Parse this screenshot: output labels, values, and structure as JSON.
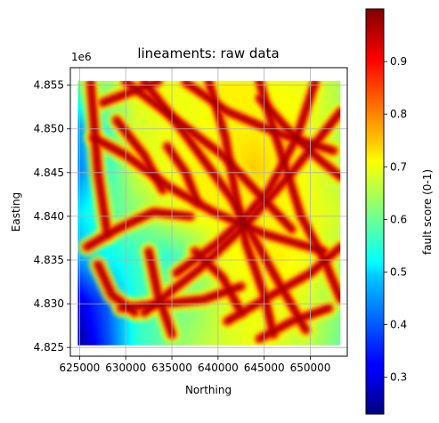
{
  "chart_data": {
    "type": "heatmap",
    "title": "lineaments: raw data",
    "xlabel": "Northing",
    "ylabel": "Easting",
    "y_offset_label": "1e6",
    "xlim": [
      624000,
      654000
    ],
    "ylim": [
      4824000,
      4857000
    ],
    "data_extent": {
      "x": [
        624800,
        653300
      ],
      "y": [
        4825200,
        4855500
      ]
    },
    "x_ticks": [
      625000,
      630000,
      635000,
      640000,
      645000,
      650000
    ],
    "x_tick_labels": [
      "625000",
      "630000",
      "635000",
      "640000",
      "645000",
      "650000"
    ],
    "y_ticks": [
      4825000,
      4830000,
      4835000,
      4840000,
      4845000,
      4850000,
      4855000
    ],
    "y_tick_labels": [
      "4.825",
      "4.830",
      "4.835",
      "4.840",
      "4.845",
      "4.850",
      "4.855"
    ],
    "grid": true,
    "colorbar": {
      "label": "fault score (0-1)",
      "range": [
        0.23,
        1.0
      ],
      "colormap": "jet",
      "ticks": [
        0.3,
        0.4,
        0.5,
        0.6,
        0.7,
        0.8,
        0.9
      ],
      "tick_labels": [
        "0.3",
        "0.4",
        "0.5",
        "0.6",
        "0.7",
        "0.8",
        "0.9"
      ]
    },
    "base_field": [
      [
        0.62,
        0.64,
        0.7,
        0.7,
        0.7,
        0.72,
        0.72,
        0.7,
        0.7,
        0.65
      ],
      [
        0.45,
        0.55,
        0.68,
        0.7,
        0.7,
        0.72,
        0.72,
        0.72,
        0.7,
        0.65
      ],
      [
        0.42,
        0.55,
        0.68,
        0.7,
        0.72,
        0.72,
        0.75,
        0.72,
        0.7,
        0.65
      ],
      [
        0.5,
        0.58,
        0.62,
        0.68,
        0.72,
        0.72,
        0.72,
        0.72,
        0.7,
        0.68
      ],
      [
        0.45,
        0.52,
        0.56,
        0.55,
        0.6,
        0.7,
        0.72,
        0.72,
        0.7,
        0.65
      ],
      [
        0.3,
        0.4,
        0.55,
        0.6,
        0.62,
        0.68,
        0.7,
        0.7,
        0.68,
        0.62
      ],
      [
        0.25,
        0.38,
        0.55,
        0.6,
        0.65,
        0.68,
        0.7,
        0.68,
        0.66,
        0.6
      ]
    ],
    "lineaments": [
      [
        [
          630000,
          4855400
        ],
        [
          640500,
          4847000
        ],
        [
          648000,
          4838500
        ]
      ],
      [
        [
          627500,
          4853000
        ],
        [
          633500,
          4855400
        ]
      ],
      [
        [
          632000,
          4855400
        ],
        [
          636000,
          4850000
        ],
        [
          641500,
          4842000
        ],
        [
          646000,
          4833500
        ],
        [
          649500,
          4827000
        ]
      ],
      [
        [
          636500,
          4855300
        ],
        [
          641000,
          4852000
        ],
        [
          646500,
          4849500
        ],
        [
          652500,
          4847500
        ]
      ],
      [
        [
          639000,
          4855400
        ],
        [
          640800,
          4849000
        ],
        [
          641800,
          4843000
        ],
        [
          643000,
          4837000
        ],
        [
          645000,
          4831000
        ],
        [
          646000,
          4826500
        ]
      ],
      [
        [
          644500,
          4855400
        ],
        [
          646000,
          4850000
        ],
        [
          647500,
          4845000
        ],
        [
          649000,
          4840000
        ],
        [
          651500,
          4835000
        ],
        [
          653300,
          4830500
        ]
      ],
      [
        [
          650500,
          4855300
        ],
        [
          648500,
          4849000
        ],
        [
          645500,
          4843000
        ],
        [
          643000,
          4840000
        ],
        [
          640000,
          4837000
        ],
        [
          635500,
          4833500
        ]
      ],
      [
        [
          653300,
          4852000
        ],
        [
          648000,
          4845000
        ],
        [
          643000,
          4839000
        ],
        [
          638000,
          4834000
        ],
        [
          632000,
          4829000
        ]
      ],
      [
        [
          626500,
          4849000
        ],
        [
          630000,
          4847000
        ],
        [
          634500,
          4843500
        ],
        [
          639500,
          4840500
        ],
        [
          645000,
          4838000
        ],
        [
          651500,
          4836000
        ]
      ],
      [
        [
          629000,
          4851000
        ],
        [
          632000,
          4847000
        ],
        [
          634000,
          4843000
        ]
      ],
      [
        [
          625800,
          4836500
        ],
        [
          629000,
          4838500
        ],
        [
          633000,
          4840500
        ],
        [
          637000,
          4840000
        ]
      ],
      [
        [
          629500,
          4829500
        ],
        [
          634000,
          4830000
        ],
        [
          638500,
          4830500
        ],
        [
          642500,
          4832000
        ]
      ],
      [
        [
          637500,
          4836000
        ],
        [
          640500,
          4833000
        ],
        [
          642500,
          4829000
        ]
      ],
      [
        [
          641000,
          4828000
        ],
        [
          645000,
          4830500
        ],
        [
          650000,
          4833500
        ],
        [
          653300,
          4836500
        ]
      ],
      [
        [
          644500,
          4826000
        ],
        [
          648000,
          4828000
        ],
        [
          652000,
          4829500
        ]
      ],
      [
        [
          632500,
          4836000
        ],
        [
          633500,
          4831000
        ],
        [
          635000,
          4826500
        ]
      ],
      [
        [
          627000,
          4834500
        ],
        [
          628500,
          4831000
        ],
        [
          631000,
          4829000
        ]
      ],
      [
        [
          644500,
          4853500
        ],
        [
          647500,
          4850000
        ],
        [
          651000,
          4846500
        ],
        [
          653300,
          4844500
        ]
      ],
      [
        [
          626200,
          4855300
        ],
        [
          627000,
          4845000
        ],
        [
          628000,
          4838000
        ]
      ],
      [
        [
          634500,
          4848000
        ],
        [
          636500,
          4845000
        ],
        [
          637800,
          4841500
        ]
      ]
    ]
  }
}
